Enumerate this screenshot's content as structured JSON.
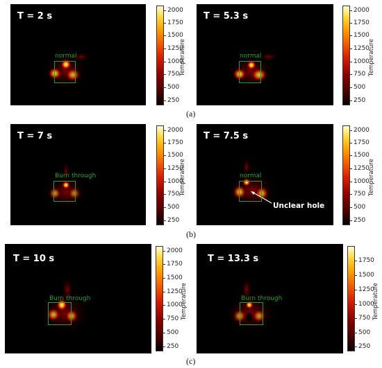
{
  "figure": {
    "axis_label": "Temperature",
    "subcaptions": [
      "(a)",
      "(b)",
      "(c)"
    ],
    "colorbars": [
      {
        "ticks": [
          "2000",
          "1750",
          "1500",
          "1250",
          "1000",
          "750",
          "500",
          "250"
        ]
      },
      {
        "ticks": [
          "2000",
          "1750",
          "1500",
          "1250",
          "1000",
          "750",
          "500",
          "250"
        ]
      },
      {
        "ticks": [
          "2000",
          "1750",
          "1500",
          "1250",
          "1000",
          "750",
          "500",
          "250"
        ]
      },
      {
        "ticks": [
          "2000",
          "1750",
          "1500",
          "1250",
          "1000",
          "750",
          "500",
          "250"
        ]
      },
      {
        "ticks": [
          "2000",
          "1750",
          "1500",
          "1250",
          "1000",
          "750",
          "500",
          "250"
        ]
      },
      {
        "ticks": [
          "1750",
          "1500",
          "1250",
          "1000",
          "750",
          "500",
          "250"
        ]
      }
    ],
    "panels": [
      {
        "time": "T = 2 s",
        "status": "normal"
      },
      {
        "time": "T = 5.3 s",
        "status": "normal"
      },
      {
        "time": "T = 7 s",
        "status": "Burn through"
      },
      {
        "time": "T = 7.5 s",
        "status": "normal",
        "annotation": "Unclear hole"
      },
      {
        "time": "T = 10 s",
        "status": "Burn through"
      },
      {
        "time": "T = 13.3 s",
        "status": "Burn through"
      }
    ]
  }
}
